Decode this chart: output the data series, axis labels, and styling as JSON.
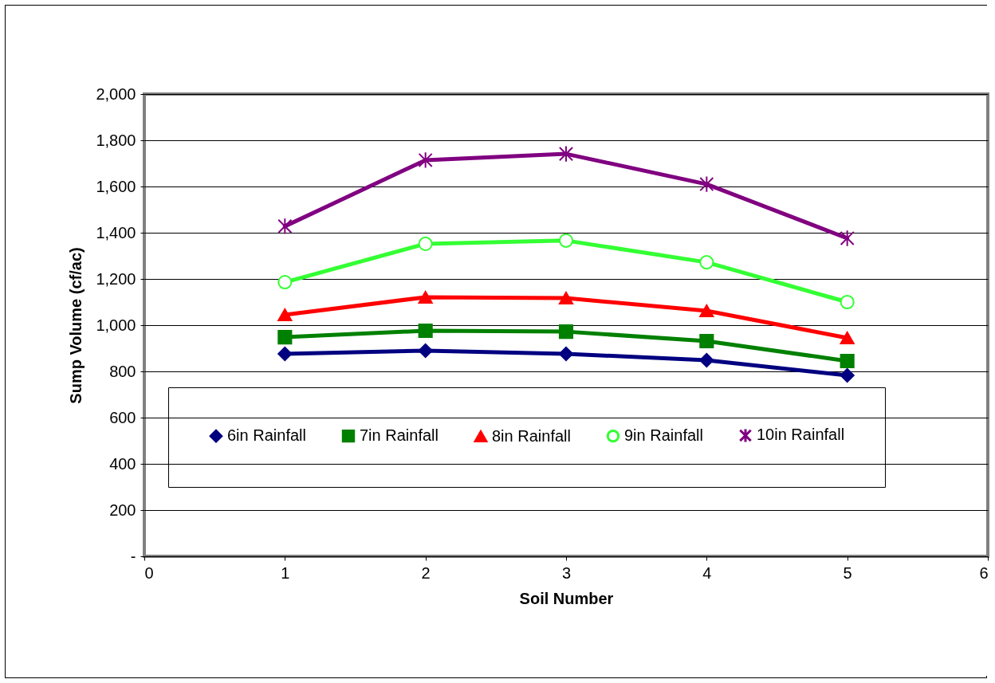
{
  "chart_data": {
    "type": "line",
    "xlabel": "Soil Number",
    "ylabel": "Sump Volume (cf/ac)",
    "x": [
      1,
      2,
      3,
      4,
      5
    ],
    "series": [
      {
        "name": "6in Rainfall",
        "color": "#000080",
        "marker": "diamond",
        "values": [
          876,
          890,
          876,
          848,
          783
        ]
      },
      {
        "name": "7in Rainfall",
        "color": "#008000",
        "marker": "square",
        "values": [
          948,
          976,
          972,
          931,
          845
        ]
      },
      {
        "name": "8in Rainfall",
        "color": "#ff0000",
        "marker": "triangle",
        "values": [
          1045,
          1121,
          1117,
          1062,
          945
        ]
      },
      {
        "name": "9in Rainfall",
        "color": "#33ff33",
        "marker": "circle",
        "values": [
          1186,
          1352,
          1366,
          1272,
          1100
        ]
      },
      {
        "name": "10in Rainfall",
        "color": "#800080",
        "marker": "cross",
        "values": [
          1428,
          1714,
          1741,
          1610,
          1376
        ]
      }
    ],
    "xlim": [
      0,
      6
    ],
    "xticks": [
      0,
      1,
      2,
      3,
      4,
      5,
      6
    ],
    "ylim": [
      0,
      2000
    ],
    "yticks": [
      {
        "value": 0,
        "label": "-"
      },
      {
        "value": 200,
        "label": "200"
      },
      {
        "value": 400,
        "label": "400"
      },
      {
        "value": 600,
        "label": "600"
      },
      {
        "value": 800,
        "label": "800"
      },
      {
        "value": 1000,
        "label": "1,000"
      },
      {
        "value": 1200,
        "label": "1,200"
      },
      {
        "value": 1400,
        "label": "1,400"
      },
      {
        "value": 1600,
        "label": "1,600"
      },
      {
        "value": 1800,
        "label": "1,800"
      },
      {
        "value": 2000,
        "label": "2,000"
      }
    ],
    "grid": "y",
    "legend": "bottom"
  }
}
